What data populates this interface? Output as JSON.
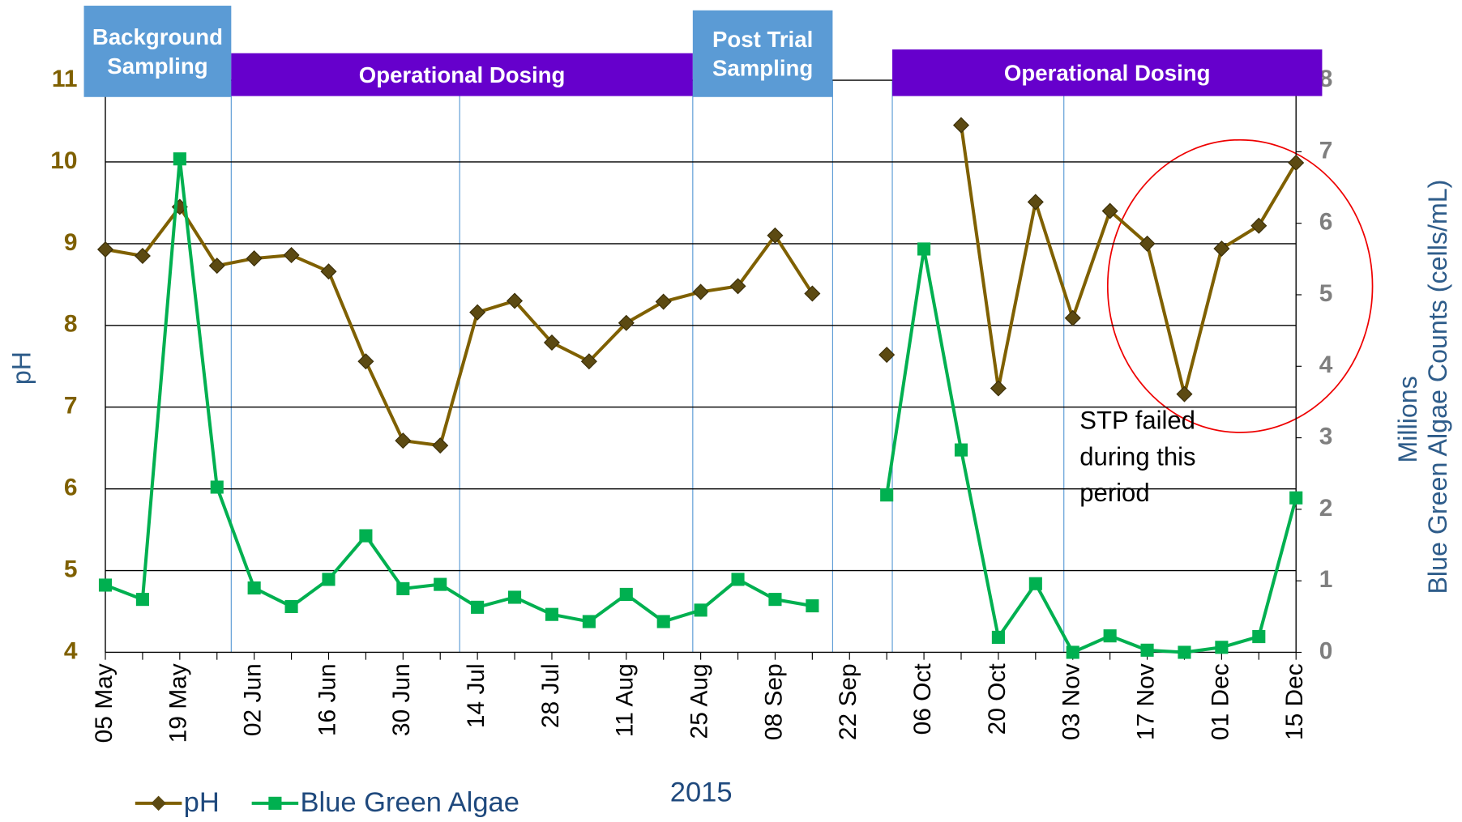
{
  "chart_data": {
    "type": "line",
    "categories": [
      "05 May",
      null,
      "19 May",
      null,
      "02 Jun",
      null,
      "16 Jun",
      null,
      "30 Jun",
      null,
      "14 Jul",
      null,
      "28 Jul",
      null,
      "11 Aug",
      null,
      "25 Aug",
      null,
      "08 Sep",
      null,
      "22 Sep",
      null,
      "06 Oct",
      null,
      "20 Oct",
      null,
      "03 Nov",
      null,
      "17 Nov",
      null,
      "01 Dec",
      null,
      "15 Dec"
    ],
    "x_label": "2015",
    "y_label": "pH",
    "y2_label": [
      "Millions",
      "Blue Green Algae Counts (cells/mL)"
    ],
    "ylim": [
      4,
      11
    ],
    "yticks": [
      4,
      5,
      6,
      7,
      8,
      9,
      10,
      11
    ],
    "y2lim": [
      0,
      8
    ],
    "y2ticks": [
      0,
      1,
      2,
      3,
      4,
      5,
      6,
      7,
      8
    ],
    "grid": true,
    "legend": "bottom-left",
    "series": [
      {
        "name": "pH",
        "color": "#7f6000",
        "marker": "diamond",
        "values": [
          8.93,
          8.85,
          9.45,
          8.73,
          8.82,
          8.86,
          8.66,
          7.56,
          6.59,
          6.53,
          8.16,
          8.3,
          7.79,
          7.56,
          8.03,
          8.29,
          8.41,
          8.48,
          9.1,
          8.39,
          null,
          7.64,
          null,
          10.45,
          7.23,
          9.51,
          8.09,
          9.4,
          9.0,
          7.16,
          8.94,
          9.22,
          9.99
        ]
      },
      {
        "name": "Blue Green Algae",
        "color": "#00b050",
        "marker": "square",
        "axis": "y2",
        "values": [
          0.94,
          0.74,
          6.9,
          2.31,
          0.9,
          0.64,
          1.02,
          1.63,
          0.89,
          0.95,
          0.63,
          0.77,
          0.53,
          0.43,
          0.81,
          0.43,
          0.59,
          1.02,
          0.74,
          0.65,
          null,
          2.2,
          5.64,
          2.83,
          0.21,
          0.96,
          0,
          0.23,
          0.03,
          0,
          0.07,
          0.22,
          2.16
        ]
      }
    ],
    "phases": [
      {
        "lines": [
          "Background",
          "Sampling"
        ]
      },
      {
        "lines": [
          "Operational Dosing"
        ]
      },
      {
        "lines": [
          "Post Trial",
          "Sampling"
        ]
      },
      {
        "lines": [
          "Operational Dosing"
        ]
      }
    ],
    "annotation": [
      "STP failed",
      "during this",
      "period"
    ]
  }
}
